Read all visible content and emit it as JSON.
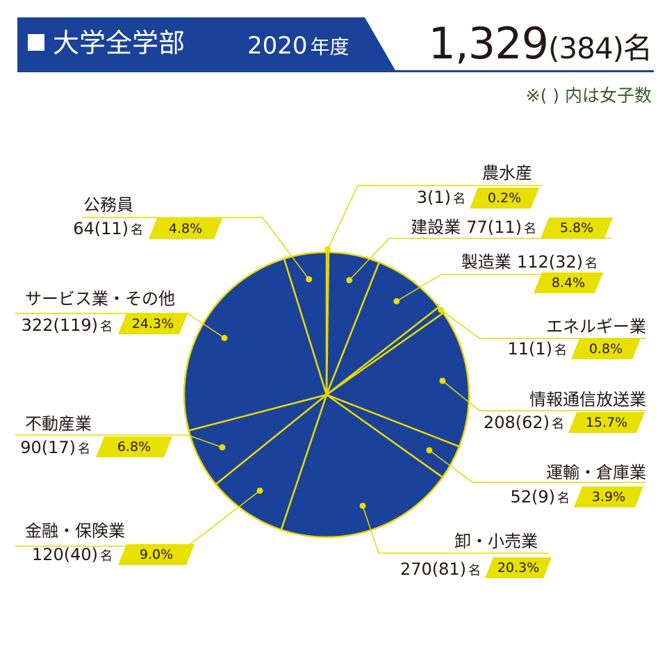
{
  "header": {
    "title": "大学全学部",
    "year": "2020",
    "year_unit": "年度",
    "total": "1,329",
    "total_female": "(384)",
    "total_unit": "名",
    "note": "※( ) 内は女子数"
  },
  "colors": {
    "primary": "#1a429a",
    "accent": "#e8e000",
    "line": "#e8d800"
  },
  "chart_data": {
    "type": "pie",
    "unit": "名",
    "slices": [
      {
        "label": "農水産",
        "count": "3",
        "female": "(1)",
        "value": 3,
        "percent": "0.2%"
      },
      {
        "label": "建設業",
        "count": "77",
        "female": "(11)",
        "value": 77,
        "percent": "5.8%"
      },
      {
        "label": "製造業",
        "count": "112",
        "female": "(32)",
        "value": 112,
        "percent": "8.4%"
      },
      {
        "label": "エネルギー業",
        "count": "11",
        "female": "(1)",
        "value": 11,
        "percent": "0.8%"
      },
      {
        "label": "情報通信放送業",
        "count": "208",
        "female": "(62)",
        "value": 208,
        "percent": "15.7%"
      },
      {
        "label": "運輸・倉庫業",
        "count": "52",
        "female": "(9)",
        "value": 52,
        "percent": "3.9%"
      },
      {
        "label": "卸・小売業",
        "count": "270",
        "female": "(81)",
        "value": 270,
        "percent": "20.3%"
      },
      {
        "label": "金融・保険業",
        "count": "120",
        "female": "(40)",
        "value": 120,
        "percent": "9.0%"
      },
      {
        "label": "不動産業",
        "count": "90",
        "female": "(17)",
        "value": 90,
        "percent": "6.8%"
      },
      {
        "label": "サービス業・その他",
        "count": "322",
        "female": "(119)",
        "value": 322,
        "percent": "24.3%"
      },
      {
        "label": "公務員",
        "count": "64",
        "female": "(11)",
        "value": 64,
        "percent": "4.8%"
      }
    ]
  }
}
